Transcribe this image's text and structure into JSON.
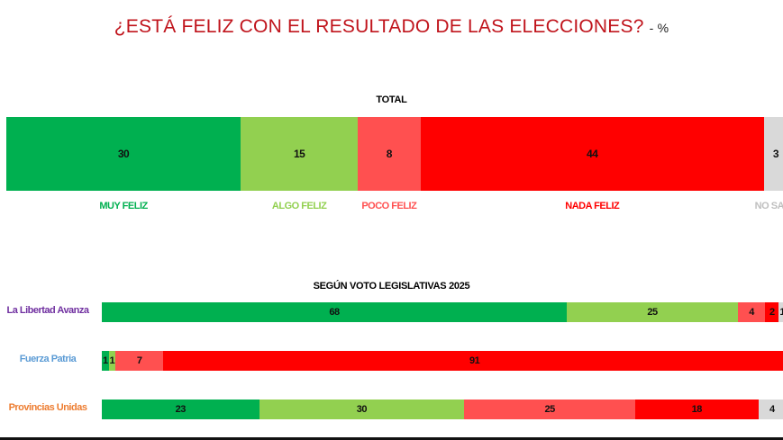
{
  "chart_data": {
    "type": "bar",
    "orientation": "horizontal-stacked",
    "title": "¿ESTÁ FELIZ CON EL RESULTADO DE LAS ELECCIONES?",
    "unit": "- %",
    "categories": [
      "MUY FELIZ",
      "ALGO FELIZ",
      "POCO FELIZ",
      "NADA FELIZ",
      "NO SABE"
    ],
    "colors": [
      "#00b050",
      "#92d050",
      "#ff5050",
      "#ff0000",
      "#d9d9d9"
    ],
    "label_colors": [
      "#00b050",
      "#92d050",
      "#ff5050",
      "#ff0000",
      "#bfbfbf"
    ],
    "total": {
      "title": "TOTAL",
      "values": [
        30,
        15,
        8,
        44,
        3
      ]
    },
    "by_vote": {
      "title": "SEGÚN VOTO LEGISLATIVAS 2025",
      "groups": [
        {
          "name": "La Libertad Avanza",
          "color": "#7030a0",
          "values": [
            68,
            25,
            4,
            2,
            1
          ]
        },
        {
          "name": "Fuerza Patria",
          "color": "#5b9bd5",
          "values": [
            1,
            1,
            7,
            91,
            0
          ]
        },
        {
          "name": "Provincias Unidas",
          "color": "#ed7d31",
          "values": [
            23,
            30,
            25,
            18,
            4
          ]
        }
      ]
    }
  }
}
